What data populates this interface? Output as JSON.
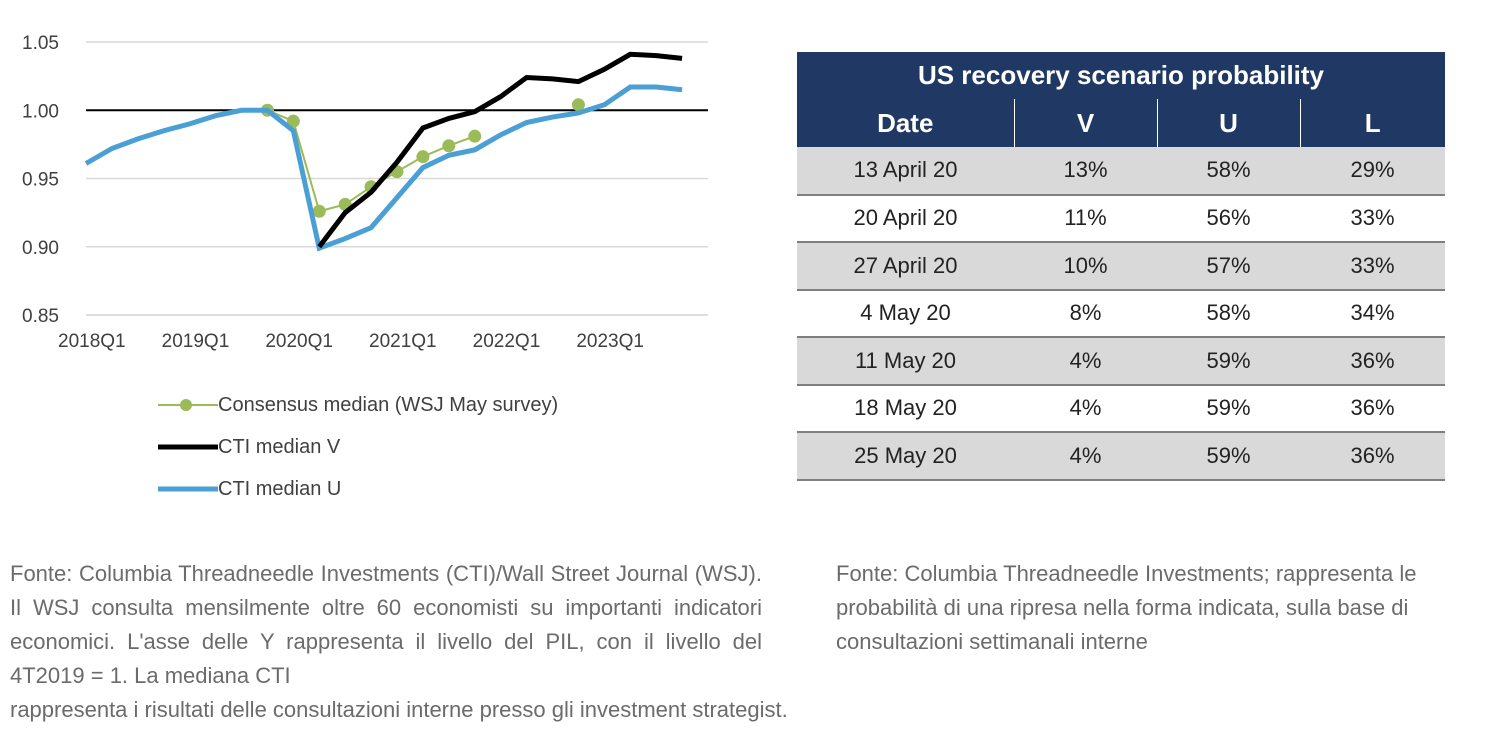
{
  "chart_data": {
    "type": "line",
    "x": [
      "2018Q1",
      "2018Q2",
      "2018Q3",
      "2018Q4",
      "2019Q1",
      "2019Q2",
      "2019Q3",
      "2019Q4",
      "2020Q1",
      "2020Q2",
      "2020Q3",
      "2020Q4",
      "2021Q1",
      "2021Q2",
      "2021Q3",
      "2021Q4",
      "2022Q1",
      "2022Q2",
      "2022Q3",
      "2022Q4",
      "2023Q1",
      "2023Q2",
      "2023Q3",
      "2023Q4"
    ],
    "xticks": [
      "2018Q1",
      "2019Q1",
      "2020Q1",
      "2021Q1",
      "2022Q1",
      "2023Q1"
    ],
    "yticks": [
      "1.05",
      "1.00",
      "0.95",
      "0.90",
      "0.85"
    ],
    "ylim": [
      0.85,
      1.05
    ],
    "reference_line": 1.0,
    "grid": "horizontal",
    "series": [
      {
        "name": "Consensus median (WSJ May survey)",
        "color": "#9bbb59",
        "marker": "circle",
        "values": [
          null,
          null,
          null,
          null,
          null,
          null,
          null,
          1.0,
          0.992,
          0.926,
          0.931,
          0.944,
          0.955,
          0.966,
          0.974,
          0.981,
          null,
          null,
          null,
          1.004,
          null,
          null,
          null,
          null
        ]
      },
      {
        "name": "CTI median V",
        "color": "#000000",
        "values": [
          null,
          null,
          null,
          null,
          null,
          null,
          null,
          null,
          null,
          0.9,
          0.925,
          0.94,
          0.962,
          0.987,
          0.994,
          0.999,
          1.01,
          1.024,
          1.023,
          1.021,
          1.03,
          1.041,
          1.04,
          1.038
        ]
      },
      {
        "name": "CTI median U",
        "color": "#4a9fd5",
        "values": [
          0.961,
          0.972,
          0.979,
          0.985,
          0.99,
          0.996,
          1.0,
          1.0,
          0.985,
          0.899,
          0.906,
          0.914,
          0.936,
          0.958,
          0.967,
          0.971,
          0.982,
          0.991,
          0.995,
          0.998,
          1.004,
          1.017,
          1.017,
          1.015
        ]
      }
    ]
  },
  "table": {
    "title": "US recovery scenario probability",
    "headers": [
      "Date",
      "V",
      "U",
      "L"
    ],
    "rows": [
      [
        "13 April 20",
        "13%",
        "58%",
        "29%"
      ],
      [
        "20 April 20",
        "11%",
        "56%",
        "33%"
      ],
      [
        "27 April 20",
        "10%",
        "57%",
        "33%"
      ],
      [
        "4 May 20",
        "8%",
        "58%",
        "34%"
      ],
      [
        "11 May 20",
        "4%",
        "59%",
        "36%"
      ],
      [
        "18 May 20",
        "4%",
        "59%",
        "36%"
      ],
      [
        "25 May 20",
        "4%",
        "59%",
        "36%"
      ]
    ]
  },
  "notes": {
    "left": "Fonte: Columbia Threadneedle Investments (CTI)/Wall Street Journal (WSJ). Il WSJ consulta mensilmente oltre 60 economisti su importanti indicatori economici. L'asse delle Y rappresenta il livello del PIL, con il livello del 4T2019 = 1. La mediana CTI",
    "left_tail": "rappresenta i risultati delle consultazioni interne presso gli investment strategist.",
    "right": "Fonte: Columbia Threadneedle Investments; rappresenta le probabilità di una ripresa nella forma indicata, sulla base di consultazioni settimanali interne"
  }
}
